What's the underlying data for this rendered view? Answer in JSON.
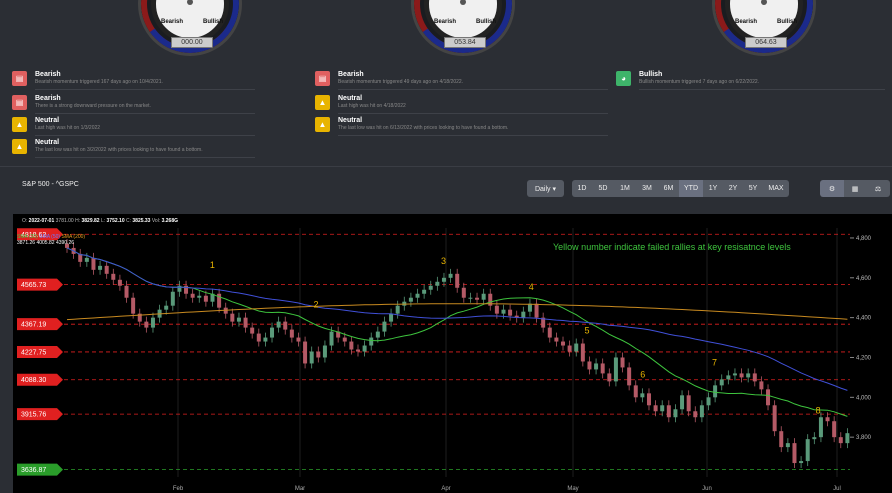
{
  "gauges": [
    {
      "value": "000.00",
      "bear": "Bearish",
      "bull": "Bullish"
    },
    {
      "value": "053.84",
      "bear": "Bearish",
      "bull": "Bullish"
    },
    {
      "value": "064.63",
      "bear": "Bearish",
      "bull": "Bullish"
    }
  ],
  "signals": {
    "col1": [
      {
        "type": "Bearish",
        "text": "Bearish momentum triggered 167 days ago on 10/4/2021.",
        "icon": "bear-chart-icon",
        "color": "red"
      },
      {
        "type": "Bearish",
        "text": "There is a strong downward pressure on the market.",
        "icon": "bear-chart-icon",
        "color": "red"
      },
      {
        "type": "Neutral",
        "text": "Last high was hit on 1/3/2022",
        "icon": "neutral-icon",
        "color": "yel"
      },
      {
        "type": "Neutral",
        "text": "The last low was hit on 3/2/2022 with prices looking to have found a bottom.",
        "icon": "neutral-icon",
        "color": "yel"
      }
    ],
    "col2": [
      {
        "type": "Bearish",
        "text": "Bearish momentum triggered 49 days ago on 4/18/2022.",
        "icon": "bear-chart-icon",
        "color": "red"
      },
      {
        "type": "Neutral",
        "text": "Last high was hit on 4/18/2022",
        "icon": "neutral-icon",
        "color": "yel"
      },
      {
        "type": "Neutral",
        "text": "The last low was hit on 6/13/2022 with prices looking to have found a bottom.",
        "icon": "neutral-icon",
        "color": "yel"
      }
    ],
    "col3": [
      {
        "type": "Bullish",
        "text": "Bullish momentum triggered 7 days ago on 6/22/2022.",
        "icon": "bull-gauge-icon",
        "color": "grn"
      }
    ]
  },
  "panel": {
    "title": "S&P 500 - ^GSPC",
    "interval": "Daily ▾",
    "ranges": [
      "1D",
      "5D",
      "1M",
      "3M",
      "6M",
      "YTD",
      "1Y",
      "2Y",
      "5Y",
      "MAX"
    ],
    "active_range": "YTD"
  },
  "chart_header": {
    "open_label": "O:",
    "open": "2022-07-01",
    "o_val": "3781.00",
    "h_label": "H:",
    "h_val": "3829.82",
    "l_label": "L:",
    "l_val": "3752.10",
    "c_label": "C:",
    "c_val": "3825.33",
    "vol_label": "Vol:",
    "vol_val": "3.268G"
  },
  "legend": {
    "sma20_label": "SMA (20)",
    "sma20": "3871.26",
    "sma50_label": "SMA (50)",
    "sma50": "4005.82",
    "sma200_label": "SMA (200)",
    "sma200": "4390.26"
  },
  "annotation": "Yellow number indicate failed rallies at key resisatnce levels",
  "chart_data": {
    "type": "candlestick",
    "x_labels": [
      "Feb",
      "Mar",
      "Apr",
      "May",
      "Jun",
      "Jul"
    ],
    "y_ticks": [
      3800,
      4000,
      4200,
      4400,
      4600,
      4800
    ],
    "ylim": [
      3600,
      4850
    ],
    "levels": [
      {
        "label": "4818.62",
        "value": 4818.62,
        "color": "#e02020"
      },
      {
        "label": "4565.73",
        "value": 4565.73,
        "color": "#e02020"
      },
      {
        "label": "4367.19",
        "value": 4367.19,
        "color": "#e02020"
      },
      {
        "label": "4227.75",
        "value": 4227.75,
        "color": "#e02020"
      },
      {
        "label": "4088.30",
        "value": 4088.3,
        "color": "#e02020"
      },
      {
        "label": "3915.76",
        "value": 3915.76,
        "color": "#e02020"
      },
      {
        "label": "3636.87",
        "value": 3636.87,
        "color": "#2a9d2a"
      }
    ],
    "failed_rallies": [
      {
        "label": "1",
        "x": 0.2,
        "y": 4650
      },
      {
        "label": "2",
        "x": 0.33,
        "y": 4450
      },
      {
        "label": "3",
        "x": 0.49,
        "y": 4670
      },
      {
        "label": "4",
        "x": 0.6,
        "y": 4540
      },
      {
        "label": "5",
        "x": 0.67,
        "y": 4320
      },
      {
        "label": "6",
        "x": 0.74,
        "y": 4100
      },
      {
        "label": "7",
        "x": 0.83,
        "y": 4160
      },
      {
        "label": "8",
        "x": 0.96,
        "y": 3920
      }
    ],
    "closes": [
      4750,
      4720,
      4680,
      4700,
      4640,
      4660,
      4620,
      4590,
      4560,
      4500,
      4420,
      4380,
      4350,
      4400,
      4440,
      4460,
      4530,
      4560,
      4520,
      4500,
      4510,
      4480,
      4520,
      4450,
      4420,
      4380,
      4400,
      4350,
      4320,
      4280,
      4300,
      4350,
      4380,
      4340,
      4300,
      4280,
      4170,
      4230,
      4200,
      4260,
      4330,
      4300,
      4280,
      4240,
      4230,
      4260,
      4300,
      4330,
      4380,
      4420,
      4460,
      4480,
      4500,
      4520,
      4540,
      4560,
      4580,
      4600,
      4620,
      4550,
      4500,
      4500,
      4490,
      4520,
      4460,
      4420,
      4440,
      4410,
      4400,
      4430,
      4470,
      4400,
      4350,
      4300,
      4280,
      4260,
      4230,
      4270,
      4180,
      4140,
      4170,
      4120,
      4080,
      4200,
      4150,
      4060,
      4000,
      4020,
      3960,
      3930,
      3960,
      3900,
      3940,
      4010,
      3930,
      3900,
      3960,
      4000,
      4060,
      4090,
      4110,
      4120,
      4100,
      4120,
      4080,
      4040,
      3960,
      3830,
      3750,
      3770,
      3670,
      3680,
      3790,
      3800,
      3900,
      3880,
      3800,
      3770,
      3820
    ]
  }
}
